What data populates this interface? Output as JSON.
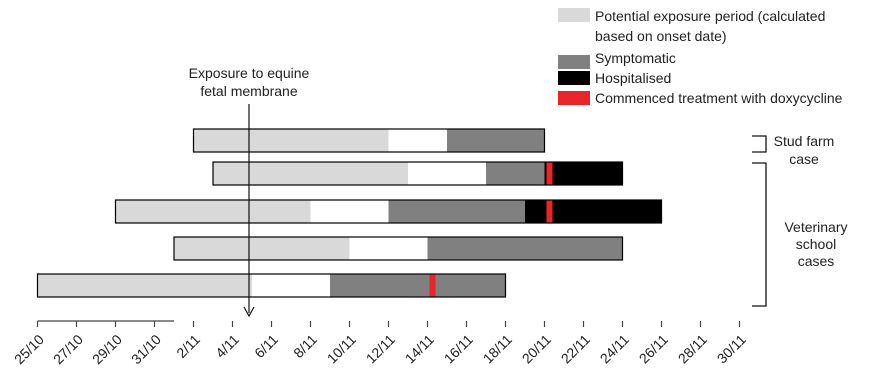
{
  "chart_data": {
    "type": "gantt",
    "title": "",
    "xlabel": "",
    "ylabel": "",
    "x_axis": {
      "start_day": "25/10",
      "end_day": "1/12",
      "tick_labels": [
        "25/10",
        "27/10",
        "29/10",
        "31/10",
        "2/11",
        "4/11",
        "6/11",
        "8/11",
        "10/11",
        "12/11",
        "14/11",
        "16/11",
        "18/11",
        "20/11",
        "22/11",
        "24/11",
        "26/11",
        "28/11",
        "30/11"
      ]
    },
    "legend": {
      "placement": "top-right",
      "items": [
        {
          "key": "potential",
          "label_lines": [
            "Potential exposure period (calculated",
            "based on onset date)"
          ],
          "color": "#d9d9d9"
        },
        {
          "key": "symptomatic",
          "label_lines": [
            "Symptomatic"
          ],
          "color": "#808080"
        },
        {
          "key": "hospitalised",
          "label_lines": [
            "Hospitalised"
          ],
          "color": "#000000"
        },
        {
          "key": "doxy",
          "label_lines": [
            "Commenced treatment with doxycycline"
          ],
          "color": "#e8262a"
        }
      ]
    },
    "series_colors": {
      "potential": "#d9d9d9",
      "gap": "#ffffff",
      "symptomatic": "#808080",
      "hospitalised": "#000000",
      "doxy": "#e8262a"
    },
    "cases": [
      {
        "potential": [
          "2/11",
          "12/11"
        ],
        "gap": [
          "12/11",
          "15/11"
        ],
        "symptomatic": [
          "15/11",
          "20/11"
        ],
        "hospitalised": null,
        "doxy": null
      },
      {
        "potential": [
          "3/11",
          "13/11"
        ],
        "gap": [
          "13/11",
          "17/11"
        ],
        "symptomatic": [
          "17/11",
          "20/11"
        ],
        "hospitalised": [
          "20/11",
          "24/11"
        ],
        "doxy": "20/11"
      },
      {
        "potential": [
          "29/10",
          "8/11"
        ],
        "gap": [
          "8/11",
          "12/11"
        ],
        "symptomatic": [
          "12/11",
          "19/11"
        ],
        "hospitalised": [
          "19/11",
          "26/11"
        ],
        "doxy": "20/11"
      },
      {
        "potential": [
          "1/11",
          "10/11"
        ],
        "gap": [
          "10/11",
          "14/11"
        ],
        "symptomatic": [
          "14/11",
          "24/11"
        ],
        "hospitalised": null,
        "doxy": null
      },
      {
        "potential": [
          "25/10",
          "5/11"
        ],
        "gap": [
          "5/11",
          "9/11"
        ],
        "symptomatic": [
          "9/11",
          "18/11"
        ],
        "hospitalised": null,
        "doxy": "14/11"
      }
    ],
    "annotations": {
      "exposure": {
        "label_lines": [
          "Exposure to equine",
          "fetal membrane"
        ],
        "date": "5/11"
      },
      "groups": [
        {
          "label_lines": [
            "Stud farm",
            "case"
          ],
          "case_indices": [
            0
          ]
        },
        {
          "label_lines": [
            "Veterinary",
            "school",
            "cases"
          ],
          "case_indices": [
            1,
            2,
            3,
            4
          ]
        }
      ]
    }
  }
}
